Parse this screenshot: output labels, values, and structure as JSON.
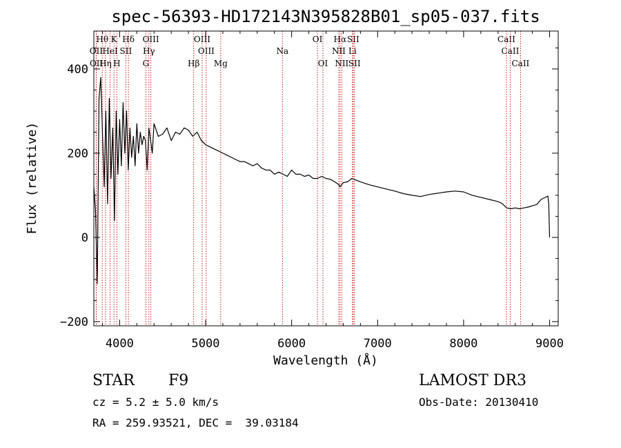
{
  "chart_data": {
    "type": "line",
    "title": "spec-56393-HD172143N395828B01_sp05-037.fits",
    "xlabel": "Wavelength (Å)",
    "ylabel": "Flux (relative)",
    "xlim": [
      3700,
      9100
    ],
    "ylim": [
      -210,
      490
    ],
    "x_ticks": [
      4000,
      5000,
      6000,
      7000,
      8000,
      9000
    ],
    "y_ticks": [
      -200,
      0,
      200,
      400
    ],
    "y_tick_labels": [
      "−200",
      "0",
      "200",
      "400"
    ],
    "grid": false,
    "series": [
      {
        "name": "flux",
        "x": [
          3700,
          3720,
          3740,
          3760,
          3780,
          3800,
          3820,
          3840,
          3860,
          3880,
          3900,
          3920,
          3940,
          3960,
          3980,
          4000,
          4020,
          4040,
          4060,
          4080,
          4100,
          4120,
          4140,
          4160,
          4180,
          4200,
          4220,
          4240,
          4260,
          4280,
          4300,
          4320,
          4340,
          4360,
          4380,
          4400,
          4450,
          4500,
          4550,
          4600,
          4650,
          4700,
          4750,
          4800,
          4850,
          4900,
          4950,
          5000,
          5050,
          5100,
          5150,
          5200,
          5250,
          5300,
          5350,
          5400,
          5450,
          5500,
          5550,
          5600,
          5650,
          5700,
          5750,
          5800,
          5850,
          5900,
          5950,
          6000,
          6050,
          6100,
          6150,
          6200,
          6250,
          6300,
          6350,
          6400,
          6450,
          6500,
          6550,
          6563,
          6600,
          6650,
          6700,
          6750,
          6800,
          6900,
          7000,
          7100,
          7200,
          7300,
          7400,
          7500,
          7600,
          7700,
          7800,
          7900,
          8000,
          8100,
          8200,
          8300,
          8400,
          8450,
          8500,
          8550,
          8600,
          8650,
          8700,
          8750,
          8800,
          8850,
          8900,
          8950,
          8980,
          8990,
          9000
        ],
        "y": [
          120,
          60,
          -110,
          330,
          380,
          250,
          120,
          300,
          80,
          330,
          140,
          260,
          40,
          300,
          150,
          280,
          170,
          320,
          200,
          300,
          160,
          260,
          190,
          240,
          170,
          270,
          200,
          250,
          220,
          240,
          230,
          160,
          260,
          230,
          200,
          270,
          240,
          245,
          260,
          230,
          250,
          245,
          260,
          255,
          240,
          250,
          230,
          220,
          215,
          210,
          205,
          200,
          195,
          190,
          185,
          180,
          180,
          175,
          170,
          175,
          165,
          160,
          160,
          150,
          155,
          150,
          145,
          160,
          150,
          150,
          145,
          148,
          140,
          140,
          145,
          140,
          138,
          132,
          125,
          120,
          130,
          132,
          140,
          136,
          132,
          125,
          120,
          115,
          110,
          104,
          100,
          97,
          102,
          105,
          108,
          110,
          108,
          100,
          95,
          90,
          85,
          80,
          70,
          68,
          70,
          68,
          70,
          72,
          75,
          78,
          90,
          95,
          98,
          80,
          0
        ]
      }
    ],
    "spectral_lines": [
      {
        "label": "Hθ",
        "x": 3798,
        "row": 0
      },
      {
        "label": "K",
        "x": 3934,
        "row": 0
      },
      {
        "label": "Hδ",
        "x": 4102,
        "row": 0
      },
      {
        "label": "OIII",
        "x": 4363,
        "row": 0
      },
      {
        "label": "OIII",
        "x": 4959,
        "row": 0
      },
      {
        "label": "OI",
        "x": 6300,
        "row": 0
      },
      {
        "label": "Hα",
        "x": 6563,
        "row": 0
      },
      {
        "label": "SII",
        "x": 6716,
        "row": 0
      },
      {
        "label": "CaII",
        "x": 8498,
        "row": 0
      },
      {
        "label": "OII",
        "x": 3727,
        "row": 1
      },
      {
        "label": "HeI",
        "x": 3889,
        "row": 1
      },
      {
        "label": "SII",
        "x": 4072,
        "row": 1
      },
      {
        "label": "Hγ",
        "x": 4340,
        "row": 1
      },
      {
        "label": "OIII",
        "x": 5007,
        "row": 1
      },
      {
        "label": "Na",
        "x": 5893,
        "row": 1
      },
      {
        "label": "NII",
        "x": 6548,
        "row": 1
      },
      {
        "label": "Li",
        "x": 6708,
        "row": 1
      },
      {
        "label": "CaII",
        "x": 8542,
        "row": 1
      },
      {
        "label": "OII",
        "x": 3729,
        "row": 2
      },
      {
        "label": "Hη",
        "x": 3835,
        "row": 2
      },
      {
        "label": "H",
        "x": 3968,
        "row": 2
      },
      {
        "label": "G",
        "x": 4305,
        "row": 2
      },
      {
        "label": "Hβ",
        "x": 4861,
        "row": 2
      },
      {
        "label": "Mg",
        "x": 5175,
        "row": 2
      },
      {
        "label": "OI",
        "x": 6364,
        "row": 2
      },
      {
        "label": "NII",
        "x": 6583,
        "row": 2
      },
      {
        "label": "SII",
        "x": 6731,
        "row": 2
      },
      {
        "label": "CaII",
        "x": 8662,
        "row": 2
      }
    ]
  },
  "info": {
    "object_type": "STAR",
    "subclass": "F9",
    "redshift": "cz = 5.2 ± 5.0 km/s",
    "coords": "RA = 259.93521, DEC =  39.03184",
    "survey": "LAMOST DR3",
    "obs_date": "Obs-Date: 20130410"
  }
}
